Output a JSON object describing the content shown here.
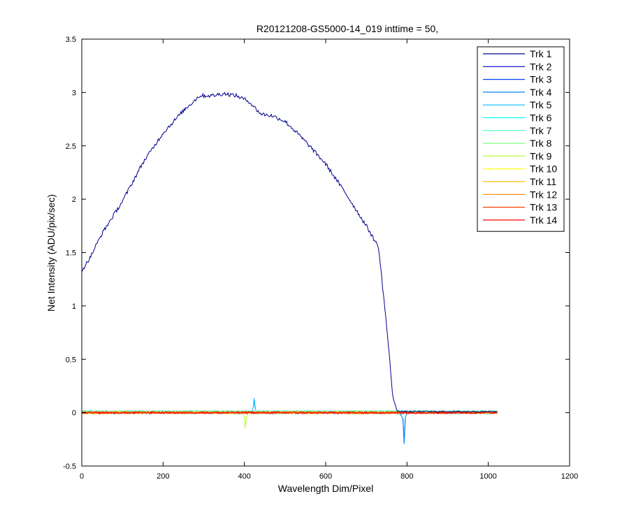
{
  "chart_data": {
    "type": "line",
    "title": "R20121208-GS5000-14_019 inttime = 50,",
    "xlabel": "Wavelength Dim/Pixel",
    "ylabel": "Net Intensity (ADU/pix/sec)",
    "xlim": [
      0,
      1200
    ],
    "ylim": [
      -0.5,
      3.5
    ],
    "xticks": [
      0,
      200,
      400,
      600,
      800,
      1000,
      1200
    ],
    "xtick_labels": [
      "0",
      "200",
      "400",
      "600",
      "800",
      "1000",
      "1200"
    ],
    "yticks": [
      -0.5,
      0,
      0.5,
      1,
      1.5,
      2,
      2.5,
      3,
      3.5
    ],
    "ytick_labels": [
      "-0.5",
      "0",
      "0.5",
      "1",
      "1.5",
      "2",
      "2.5",
      "3",
      "3.5"
    ],
    "grid": false,
    "legend_position": "top-right",
    "series": [
      {
        "name": "Trk 1",
        "color": "#00008F",
        "x": [
          0,
          20,
          50,
          100,
          150,
          200,
          250,
          290,
          320,
          350,
          380,
          410,
          440,
          470,
          500,
          530,
          560,
          600,
          650,
          700,
          730,
          745,
          755,
          765,
          775,
          790,
          850,
          900,
          950,
          1023
        ],
        "y": [
          1.33,
          1.45,
          1.68,
          1.98,
          2.34,
          2.62,
          2.83,
          2.97,
          2.97,
          2.99,
          2.97,
          2.92,
          2.8,
          2.78,
          2.73,
          2.62,
          2.5,
          2.33,
          2.05,
          1.75,
          1.55,
          1.0,
          0.6,
          0.15,
          0.02,
          0.01,
          0.01,
          0.01,
          0.01,
          0.01
        ]
      },
      {
        "name": "Trk 2",
        "color": "#0000C8",
        "x": [
          0,
          400,
          800,
          1023
        ],
        "y": [
          0.0,
          0.0,
          0.0,
          0.0
        ]
      },
      {
        "name": "Trk 3",
        "color": "#0040FF",
        "x": [
          0,
          400,
          800,
          1023
        ],
        "y": [
          0.0,
          0.0,
          0.0,
          0.0
        ]
      },
      {
        "name": "Trk 4",
        "color": "#0080FF",
        "x": [
          0,
          780,
          790,
          793,
          796,
          800,
          1023
        ],
        "y": [
          0.0,
          0.0,
          -0.05,
          -0.29,
          -0.05,
          0.0,
          0.0
        ]
      },
      {
        "name": "Trk 5",
        "color": "#00BFFF",
        "x": [
          0,
          418,
          422,
          424,
          427,
          430,
          1023
        ],
        "y": [
          0.0,
          0.0,
          0.05,
          0.13,
          0.04,
          0.0,
          0.0
        ]
      },
      {
        "name": "Trk 6",
        "color": "#00FFFF",
        "x": [
          0,
          400,
          800,
          1023
        ],
        "y": [
          0.01,
          0.01,
          0.01,
          0.01
        ]
      },
      {
        "name": "Trk 7",
        "color": "#40FFBF",
        "x": [
          0,
          400,
          800,
          1023
        ],
        "y": [
          0.01,
          0.01,
          0.01,
          0.01
        ]
      },
      {
        "name": "Trk 8",
        "color": "#80FF80",
        "x": [
          0,
          400,
          800,
          1023
        ],
        "y": [
          0.01,
          0.01,
          0.01,
          0.01
        ]
      },
      {
        "name": "Trk 9",
        "color": "#BFFF40",
        "x": [
          0,
          396,
          400,
          402,
          405,
          410,
          1023
        ],
        "y": [
          0.0,
          0.0,
          -0.05,
          -0.14,
          -0.04,
          0.0,
          0.0
        ]
      },
      {
        "name": "Trk 10",
        "color": "#FFFF00",
        "x": [
          0,
          400,
          800,
          1023
        ],
        "y": [
          0.0,
          0.0,
          0.0,
          0.0
        ]
      },
      {
        "name": "Trk 11",
        "color": "#FFBF00",
        "x": [
          0,
          400,
          800,
          1023
        ],
        "y": [
          0.0,
          0.0,
          0.0,
          0.0
        ]
      },
      {
        "name": "Trk 12",
        "color": "#FF8000",
        "x": [
          0,
          400,
          800,
          1023
        ],
        "y": [
          0.0,
          0.0,
          0.0,
          0.0
        ]
      },
      {
        "name": "Trk 13",
        "color": "#FF4000",
        "x": [
          0,
          400,
          800,
          1023
        ],
        "y": [
          0.0,
          0.0,
          0.0,
          0.0
        ]
      },
      {
        "name": "Trk 14",
        "color": "#FF0000",
        "x": [
          0,
          400,
          800,
          1023
        ],
        "y": [
          0.0,
          0.0,
          0.0,
          0.0
        ]
      }
    ]
  }
}
